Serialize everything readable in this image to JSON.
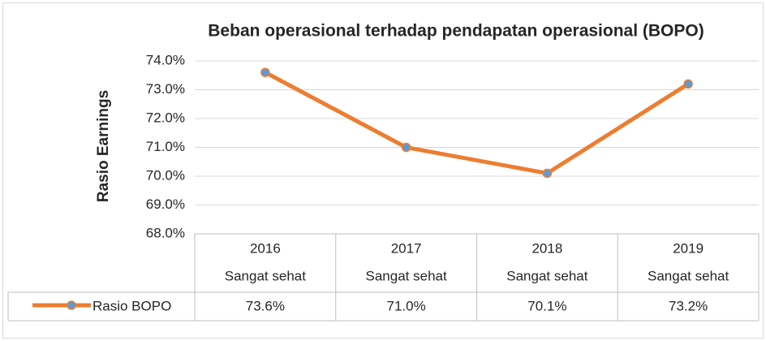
{
  "chart_data": {
    "type": "line",
    "title": "Beban operasional terhadap pendapatan operasional (BOPO)",
    "y_label": "Rasio Earnings",
    "categories": [
      [
        "2016",
        "Sangat sehat"
      ],
      [
        "2017",
        "Sangat sehat"
      ],
      [
        "2018",
        "Sangat sehat"
      ],
      [
        "2019",
        "Sangat sehat"
      ]
    ],
    "series": [
      {
        "name": "Rasio BOPO",
        "color": "#ed7d31",
        "marker_color": "#5b9bd5",
        "values": [
          73.6,
          71.0,
          70.1,
          73.2
        ],
        "value_labels": [
          "73.6%",
          "71.0%",
          "70.1%",
          "73.2%"
        ]
      }
    ],
    "ylim": [
      68,
      74
    ],
    "yticks": [
      {
        "value": 68,
        "label": "68.0%"
      },
      {
        "value": 69,
        "label": "69.0%"
      },
      {
        "value": 70,
        "label": "70.0%"
      },
      {
        "value": 71,
        "label": "71.0%"
      },
      {
        "value": 72,
        "label": "72.0%"
      },
      {
        "value": 73,
        "label": "73.0%"
      },
      {
        "value": 74,
        "label": "74.0%"
      }
    ],
    "grid": true
  }
}
